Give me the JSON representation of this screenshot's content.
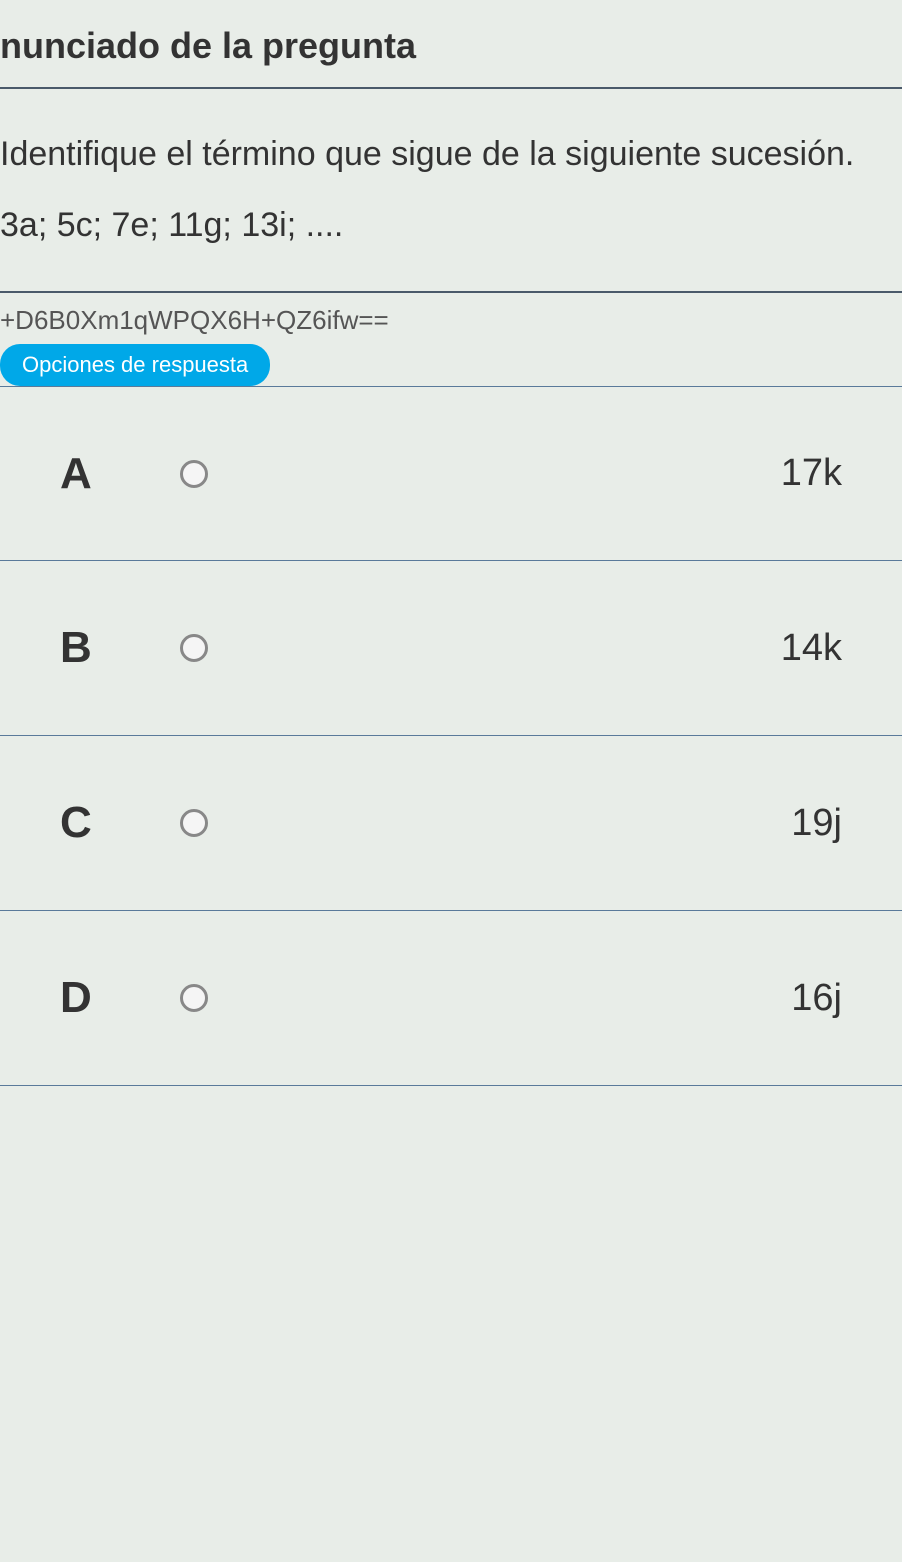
{
  "header": {
    "title": "nunciado de la pregunta"
  },
  "question": {
    "prompt": "Identifique el término que sigue de la siguiente sucesión.",
    "sequence": "3a; 5c; 7e; 11g; 13i; ...."
  },
  "hash": "+D6B0Xm1qWPQX6H+QZ6ifw==",
  "options_label": "Opciones de respuesta",
  "options": [
    {
      "letter": "A",
      "value": "17k"
    },
    {
      "letter": "B",
      "value": "14k"
    },
    {
      "letter": "C",
      "value": "19j"
    },
    {
      "letter": "D",
      "value": "16j"
    }
  ],
  "colors": {
    "background": "#e8ede8",
    "border": "#4a5a6a",
    "option_border": "#5a7a9a",
    "badge_bg": "#00a8e8",
    "text": "#333333"
  }
}
